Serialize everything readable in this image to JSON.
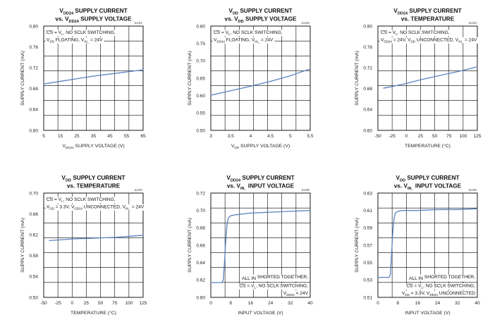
{
  "chart_data": [
    {
      "type": "line",
      "title": [
        "V_DD24 SUPPLY CURRENT",
        "vs. V_DD24 SUPPLY VOLTAGE"
      ],
      "code": "toc01",
      "xlabel": "V_DD24 SUPPLY VOLTAGE (V)",
      "ylabel": "SUPPLY CURRENT (mA)",
      "xlim": [
        5,
        65
      ],
      "ylim": [
        0.6,
        0.8
      ],
      "xticks": [
        "5",
        "15",
        "25",
        "35",
        "45",
        "55",
        "65"
      ],
      "yticks": [
        "0.60",
        "0.64",
        "0.68",
        "0.72",
        "0.76",
        "0.80"
      ],
      "annotation": [
        "CS‾ = V_L, NO SCLK SWITCHING,",
        "V_DD FLOATING, V_IN_ = 24V"
      ],
      "annotation_position": "top-left",
      "series": [
        {
          "x": [
            5,
            15,
            25,
            35,
            45,
            55,
            65
          ],
          "values": [
            0.689,
            0.694,
            0.699,
            0.704,
            0.708,
            0.712,
            0.716
          ]
        }
      ]
    },
    {
      "type": "line",
      "title": [
        "V_DD SUPPLY CURRENT",
        "vs. V_DD SUPPLY VOLTAGE"
      ],
      "code": "toc02",
      "xlabel": "V_DD SUPPLY VOLTAGE (V)",
      "ylabel": "SUPPLY CURRENT (mA)",
      "xlim": [
        3,
        5.5
      ],
      "ylim": [
        0.5,
        0.8
      ],
      "xticks": [
        "3",
        "3.5",
        "4",
        "4.5",
        "5",
        "5.5"
      ],
      "yticks": [
        "0.50",
        "0.55",
        "0.60",
        "0.65",
        "0.70",
        "0.75",
        "0.80"
      ],
      "annotation": [
        "CS‾ = V_L, NO SCLK SWITCHING,",
        "V_DD24 FLOATING, V_IN_ = 24V"
      ],
      "annotation_position": "top-left",
      "series": [
        {
          "x": [
            3,
            3.5,
            4,
            4.5,
            5,
            5.5
          ],
          "values": [
            0.601,
            0.614,
            0.627,
            0.641,
            0.657,
            0.677
          ]
        }
      ]
    },
    {
      "type": "line",
      "title": [
        "V_DD24 SUPPLY CURRENT",
        "vs. TEMPERATURE"
      ],
      "code": "toc03",
      "xlabel": "TEMPERATURE (°C)",
      "ylabel": "SUPPLY CURRENT (mA)",
      "xlim": [
        -50,
        125
      ],
      "ylim": [
        0.6,
        0.8
      ],
      "xticks": [
        "-50",
        "-25",
        "0",
        "25",
        "50",
        "75",
        "100",
        "125"
      ],
      "yticks": [
        "0.60",
        "0.64",
        "0.68",
        "0.72",
        "0.76",
        "0.80"
      ],
      "annotation": [
        "CS‾ = V_L, NO SCLK SWITCHING,",
        "V_DD24 = 24V, V_DD UNCONNECTED, V_IN_ = 24V"
      ],
      "annotation_position": "top-left",
      "series": [
        {
          "x": [
            -40,
            -25,
            0,
            25,
            50,
            75,
            100,
            125
          ],
          "values": [
            0.681,
            0.684,
            0.69,
            0.697,
            0.703,
            0.709,
            0.715,
            0.722
          ]
        }
      ]
    },
    {
      "type": "line",
      "title": [
        "V_DD SUPPLY CURRENT",
        "vs. TEMPERATURE"
      ],
      "code": "toc04",
      "xlabel": "TEMPERATURE (°C)",
      "ylabel": "SUPPLY CURRENT (mA)",
      "xlim": [
        -50,
        125
      ],
      "ylim": [
        0.5,
        0.7
      ],
      "xticks": [
        "-50",
        "-25",
        "0",
        "25",
        "50",
        "75",
        "100",
        "125"
      ],
      "yticks": [
        "0.50",
        "0.54",
        "0.58",
        "0.62",
        "0.66",
        "0.70"
      ],
      "annotation": [
        "CS‾ = V_L, NO SCLK SWITCHING,",
        "V_DD = 3.3V, V_DD24 UNCONNECTED, V_IN_ = 24V"
      ],
      "annotation_position": "top-left",
      "series": [
        {
          "x": [
            -40,
            -25,
            0,
            25,
            50,
            75,
            100,
            125
          ],
          "values": [
            0.609,
            0.61,
            0.612,
            0.613,
            0.614,
            0.615,
            0.617,
            0.619
          ]
        }
      ]
    },
    {
      "type": "line",
      "title": [
        "V_DD24 SUPPLY CURRENT",
        "vs. V_IN_ INPUT VOLTAGE"
      ],
      "code": "toc05",
      "xlabel": "INPUT VOLTAGE (V)",
      "ylabel": "SUPPLY CURRENT (mA)",
      "xlim": [
        0,
        40
      ],
      "ylim": [
        0.6,
        0.72
      ],
      "xticks": [
        "0",
        "8",
        "16",
        "24",
        "32",
        "40"
      ],
      "yticks": [
        "0.60",
        "0.62",
        "0.64",
        "0.66",
        "0.68",
        "0.70",
        "0.72"
      ],
      "annotation": [
        "ALL IN_ SHORTED TOGETHER,",
        "CS‾ = V_L, NO SCLK SWITCHING,",
        "V_DD24 = 24V"
      ],
      "annotation_position": "bottom-right",
      "series": [
        {
          "x": [
            0,
            4.5,
            5,
            5.5,
            6,
            6.5,
            7,
            8,
            10,
            16,
            24,
            32,
            40
          ],
          "values": [
            0.617,
            0.617,
            0.62,
            0.64,
            0.665,
            0.683,
            0.691,
            0.694,
            0.695,
            0.697,
            0.698,
            0.699,
            0.7
          ]
        }
      ]
    },
    {
      "type": "line",
      "title": [
        "V_DD SUPPLY CURRENT",
        "vs. V_IN_ INPUT VOLTAGE"
      ],
      "code": "toc06",
      "xlabel": "INPUT VOLTAGE (V)",
      "ylabel": "SUPPLY CURRENT (mA)",
      "xlim": [
        0,
        40
      ],
      "ylim": [
        0.51,
        0.63
      ],
      "xticks": [
        "0",
        "8",
        "16",
        "24",
        "32",
        "40"
      ],
      "yticks": [
        "0.51",
        "0.53",
        "0.55",
        "0.57",
        "0.59",
        "0.61",
        "0.63"
      ],
      "annotation": [
        "ALL IN_ SHORTED TOGETHER,",
        "CS‾ = V_L, NO SCLK SWITCHING,",
        "V_DD = 3.3V, V_DD24 UNCONNECTED"
      ],
      "annotation_position": "bottom-right",
      "series": [
        {
          "x": [
            0,
            4.5,
            5,
            5.5,
            6,
            6.5,
            7,
            8,
            10,
            16,
            24,
            32,
            40
          ],
          "values": [
            0.533,
            0.533,
            0.536,
            0.56,
            0.586,
            0.601,
            0.607,
            0.609,
            0.61,
            0.61,
            0.611,
            0.611,
            0.612
          ]
        }
      ]
    }
  ],
  "colors": {
    "series": "#5b82c0",
    "grid": "#000000"
  }
}
